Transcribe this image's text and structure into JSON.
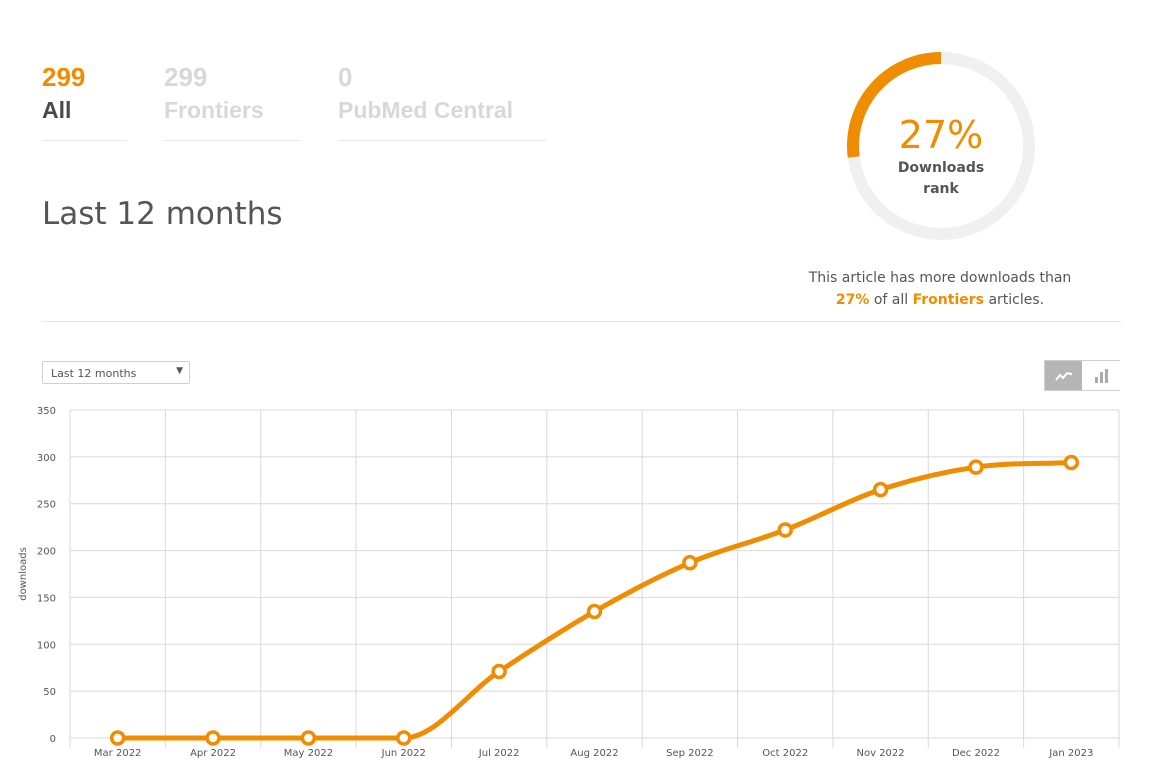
{
  "tabs": [
    {
      "count": "299",
      "label": "All"
    },
    {
      "count": "299",
      "label": "Frontiers"
    },
    {
      "count": "0",
      "label": "PubMed Central"
    }
  ],
  "period_title": "Last 12 months",
  "rank": {
    "percent_text": "27%",
    "percent_value": 27,
    "label_line1": "Downloads",
    "label_line2": "rank",
    "desc_prefix": "This article has more downloads than",
    "desc_pct": "27%",
    "desc_mid": "of all",
    "desc_journal": "Frontiers",
    "desc_suffix": "articles."
  },
  "period_select": {
    "value": "Last 12 months"
  },
  "chart_toggle": {
    "line_icon": "line-chart-icon",
    "bar_icon": "bar-chart-icon",
    "active": "line"
  },
  "colors": {
    "accent": "#f08c00",
    "grid": "#d9d9d9",
    "track": "#f0f0f0"
  },
  "chart_data": {
    "type": "line",
    "ylabel": "downloads",
    "xlabel": "",
    "ylim": [
      0,
      350
    ],
    "yticks": [
      0,
      50,
      100,
      150,
      200,
      250,
      300,
      350
    ],
    "categories": [
      "Mar 2022",
      "Apr 2022",
      "May 2022",
      "Jun 2022",
      "Jul 2022",
      "Aug 2022",
      "Sep 2022",
      "Oct 2022",
      "Nov 2022",
      "Dec 2022",
      "Jan 2023"
    ],
    "values": [
      0,
      0,
      0,
      0,
      71,
      135,
      187,
      222,
      265,
      289,
      294
    ],
    "grid": true,
    "legend": "none"
  }
}
